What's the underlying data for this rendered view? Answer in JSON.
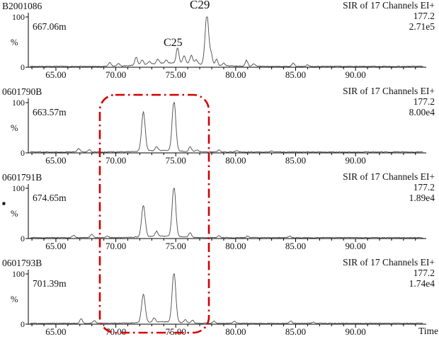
{
  "figure": {
    "time_label": "Time",
    "highlight_color": "#d40000",
    "bullet_marker": "■"
  },
  "chart_data": [
    {
      "type": "line",
      "sample_id": "B2001086",
      "depth": "667.06m",
      "channel_info": [
        "SIR of 17 Channels EI+",
        "177.2",
        "2.71e5"
      ],
      "ylabel": "%",
      "yticks": [
        "100",
        "0"
      ],
      "ylim": [
        0,
        100
      ],
      "xlim": [
        62.7,
        95.9
      ],
      "xticks": [
        "65.00",
        "70.00",
        "75.00",
        "80.00",
        "85.00",
        "90.00"
      ],
      "xtick_values": [
        65,
        70,
        75,
        80,
        85,
        90
      ],
      "peak_annotations": [
        {
          "label": "C25",
          "t": 75.2
        },
        {
          "label": "C29",
          "t": 77.6
        }
      ],
      "peaks": [
        [
          69.5,
          7
        ],
        [
          70.2,
          5
        ],
        [
          71.7,
          16
        ],
        [
          72.2,
          10
        ],
        [
          72.8,
          6
        ],
        [
          73.5,
          9
        ],
        [
          74.2,
          6
        ],
        [
          75.0,
          7,
          2.2
        ],
        [
          75.15,
          30
        ],
        [
          75.7,
          14
        ],
        [
          76.3,
          16
        ],
        [
          76.7,
          8
        ],
        [
          77.6,
          100
        ],
        [
          77.95,
          20
        ],
        [
          78.4,
          12
        ],
        [
          79.0,
          5
        ],
        [
          80.9,
          12
        ],
        [
          81.5,
          5
        ],
        [
          84.8,
          6
        ],
        [
          86.0,
          3
        ]
      ]
    },
    {
      "type": "line",
      "sample_id": "0601790B",
      "depth": "663.57m",
      "channel_info": [
        "SIR of 17 Channels EI+",
        "177.2",
        "8.00e4"
      ],
      "ylabel": "%",
      "yticks": [
        "100",
        "0"
      ],
      "ylim": [
        0,
        100
      ],
      "xlim": [
        62.7,
        95.9
      ],
      "xticks": [
        "65.00",
        "70.00",
        "75.00",
        "80.00",
        "85.00",
        "90.00"
      ],
      "xtick_values": [
        65,
        70,
        75,
        80,
        85,
        90
      ],
      "peak_annotations": [],
      "peaks": [
        [
          66.9,
          7
        ],
        [
          67.8,
          4
        ],
        [
          72.3,
          78
        ],
        [
          73.4,
          8
        ],
        [
          73.8,
          3,
          1.5
        ],
        [
          74.85,
          100
        ],
        [
          76.2,
          10
        ],
        [
          76.8,
          4
        ],
        [
          78.6,
          4
        ],
        [
          80.1,
          3
        ],
        [
          83.0,
          2
        ]
      ]
    },
    {
      "type": "line",
      "sample_id": "0601791B",
      "depth": "674.65m",
      "channel_info": [
        "SIR of 17 Channels EI+",
        "177.2",
        "1.89e4"
      ],
      "ylabel": "%",
      "yticks": [
        "100",
        "0"
      ],
      "ylim": [
        0,
        100
      ],
      "xlim": [
        62.7,
        95.9
      ],
      "xticks": [
        "65.00",
        "70.00",
        "75.00",
        "80.00",
        "85.00",
        "90.00"
      ],
      "xtick_values": [
        65,
        70,
        75,
        80,
        85,
        90
      ],
      "peak_annotations": [],
      "peaks": [
        [
          66.5,
          5
        ],
        [
          68.0,
          7
        ],
        [
          69.3,
          3
        ],
        [
          72.3,
          62
        ],
        [
          73.4,
          10
        ],
        [
          73.8,
          3,
          1.5
        ],
        [
          74.85,
          100
        ],
        [
          76.2,
          9
        ],
        [
          78.6,
          4
        ],
        [
          81.0,
          3
        ],
        [
          84.5,
          3
        ]
      ]
    },
    {
      "type": "line",
      "sample_id": "0601793B",
      "depth": "701.39m",
      "channel_info": [
        "SIR of 17 Channels EI+",
        "177.2",
        "1.74e4"
      ],
      "ylabel": "%",
      "yticks": [
        "100",
        "0"
      ],
      "ylim": [
        0,
        100
      ],
      "xlim": [
        62.7,
        95.9
      ],
      "xticks": [
        "65.00",
        "70.00",
        "75.00",
        "80.00",
        "85.00",
        "90.00"
      ],
      "xtick_values": [
        65,
        70,
        75,
        80,
        85,
        90
      ],
      "peak_annotations": [],
      "peaks": [
        [
          67.1,
          9
        ],
        [
          68.2,
          5
        ],
        [
          72.3,
          56
        ],
        [
          73.2,
          8
        ],
        [
          73.8,
          3,
          1.5
        ],
        [
          74.85,
          100
        ],
        [
          75.8,
          6
        ],
        [
          76.4,
          5
        ],
        [
          78.2,
          4
        ],
        [
          79.9,
          4
        ],
        [
          84.6,
          4
        ],
        [
          86.5,
          2
        ]
      ]
    }
  ]
}
